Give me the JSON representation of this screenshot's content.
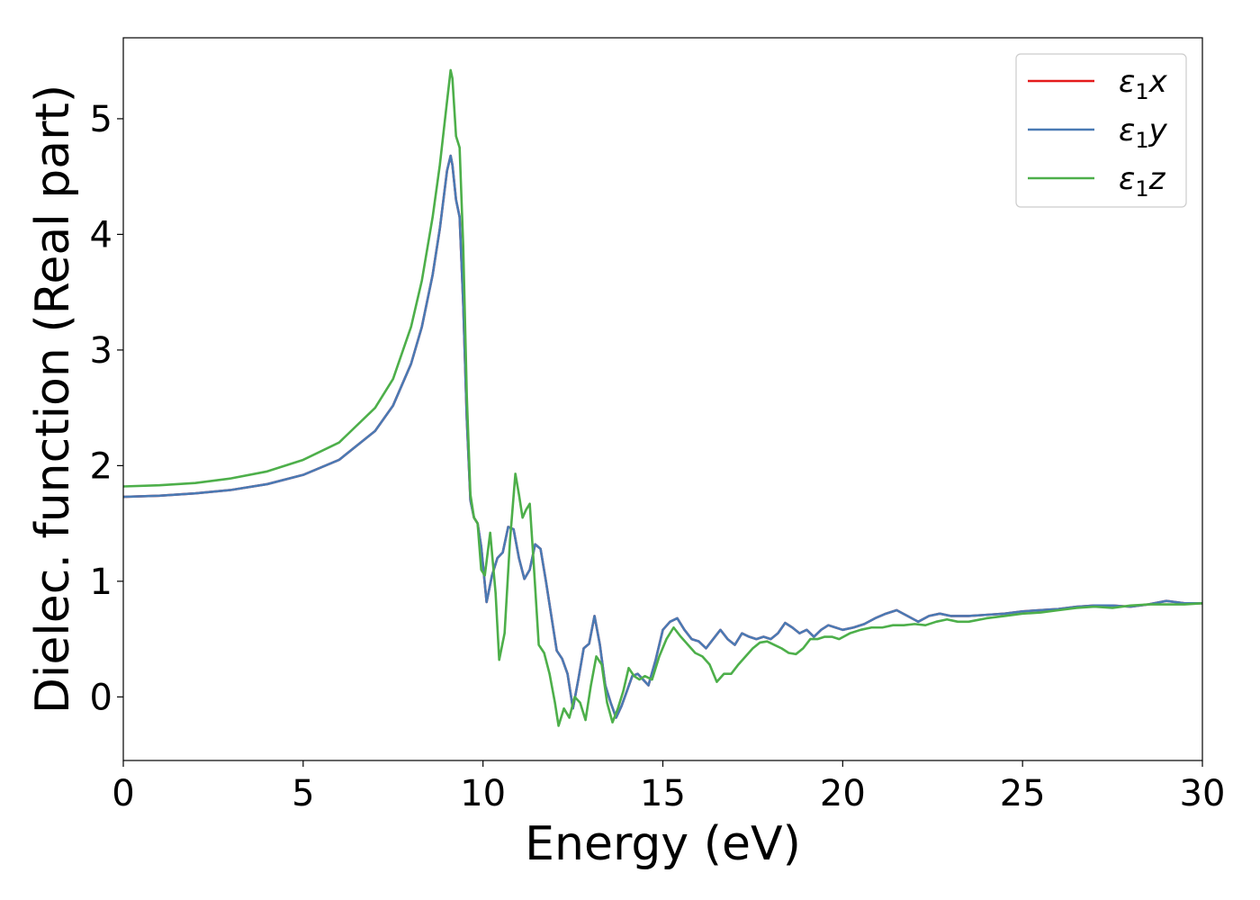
{
  "chart_data": {
    "type": "line",
    "xlabel": "Energy (eV)",
    "ylabel": "Dielec. function (Real part)",
    "xlim": [
      0,
      30
    ],
    "ylim": [
      -0.55,
      5.7
    ],
    "xticks": [
      "0",
      "5",
      "10",
      "15",
      "20",
      "25",
      "30"
    ],
    "yticks": [
      "0",
      "1",
      "2",
      "3",
      "4",
      "5"
    ],
    "grid": false,
    "legend_position": "top-right",
    "series": [
      {
        "name": "ε₁x",
        "legend_base": "ε",
        "legend_sub": "1",
        "legend_var": "x",
        "color": "#e41a1c",
        "x": [
          0,
          1,
          2,
          3,
          4,
          5,
          6,
          7,
          7.5,
          8,
          8.3,
          8.6,
          8.8,
          9.0,
          9.1,
          9.15,
          9.25,
          9.35,
          9.45,
          9.55,
          9.65,
          9.75,
          9.85,
          9.95,
          10.1,
          10.25,
          10.4,
          10.55,
          10.7,
          10.85,
          11.0,
          11.15,
          11.3,
          11.45,
          11.6,
          11.75,
          11.9,
          12.05,
          12.2,
          12.35,
          12.5,
          12.65,
          12.8,
          12.95,
          13.1,
          13.25,
          13.4,
          13.55,
          13.7,
          13.85,
          14.0,
          14.15,
          14.3,
          14.45,
          14.6,
          14.8,
          15.0,
          15.2,
          15.4,
          15.6,
          15.8,
          16.0,
          16.2,
          16.4,
          16.6,
          16.8,
          17.0,
          17.2,
          17.4,
          17.6,
          17.8,
          18.0,
          18.2,
          18.4,
          18.6,
          18.8,
          19.0,
          19.2,
          19.4,
          19.6,
          19.8,
          20.0,
          20.3,
          20.6,
          20.9,
          21.2,
          21.5,
          21.8,
          22.1,
          22.4,
          22.7,
          23.0,
          23.5,
          24.0,
          24.5,
          25.0,
          25.5,
          26.0,
          26.5,
          27.0,
          27.5,
          28.0,
          28.5,
          29.0,
          29.5,
          30.0
        ],
        "y": [
          1.73,
          1.74,
          1.76,
          1.79,
          1.84,
          1.92,
          2.05,
          2.3,
          2.52,
          2.88,
          3.2,
          3.65,
          4.05,
          4.55,
          4.68,
          4.6,
          4.3,
          4.15,
          3.4,
          2.4,
          1.7,
          1.55,
          1.5,
          1.3,
          0.82,
          1.05,
          1.2,
          1.25,
          1.47,
          1.45,
          1.2,
          1.02,
          1.1,
          1.32,
          1.28,
          1.0,
          0.7,
          0.4,
          0.33,
          0.2,
          -0.1,
          0.15,
          0.42,
          0.46,
          0.7,
          0.45,
          0.1,
          -0.05,
          -0.18,
          -0.08,
          0.05,
          0.18,
          0.2,
          0.15,
          0.1,
          0.32,
          0.58,
          0.65,
          0.68,
          0.58,
          0.5,
          0.48,
          0.42,
          0.5,
          0.58,
          0.5,
          0.45,
          0.55,
          0.52,
          0.5,
          0.52,
          0.5,
          0.55,
          0.64,
          0.6,
          0.55,
          0.58,
          0.52,
          0.58,
          0.62,
          0.6,
          0.58,
          0.6,
          0.63,
          0.68,
          0.72,
          0.75,
          0.7,
          0.65,
          0.7,
          0.72,
          0.7,
          0.7,
          0.71,
          0.72,
          0.74,
          0.75,
          0.76,
          0.78,
          0.79,
          0.79,
          0.78,
          0.8,
          0.83,
          0.81,
          0.81
        ]
      },
      {
        "name": "ε₁y",
        "legend_base": "ε",
        "legend_sub": "1",
        "legend_var": "y",
        "color": "#4a7ab4",
        "x": [
          0,
          1,
          2,
          3,
          4,
          5,
          6,
          7,
          7.5,
          8,
          8.3,
          8.6,
          8.8,
          9.0,
          9.1,
          9.15,
          9.25,
          9.35,
          9.45,
          9.55,
          9.65,
          9.75,
          9.85,
          9.95,
          10.1,
          10.25,
          10.4,
          10.55,
          10.7,
          10.85,
          11.0,
          11.15,
          11.3,
          11.45,
          11.6,
          11.75,
          11.9,
          12.05,
          12.2,
          12.35,
          12.5,
          12.65,
          12.8,
          12.95,
          13.1,
          13.25,
          13.4,
          13.55,
          13.7,
          13.85,
          14.0,
          14.15,
          14.3,
          14.45,
          14.6,
          14.8,
          15.0,
          15.2,
          15.4,
          15.6,
          15.8,
          16.0,
          16.2,
          16.4,
          16.6,
          16.8,
          17.0,
          17.2,
          17.4,
          17.6,
          17.8,
          18.0,
          18.2,
          18.4,
          18.6,
          18.8,
          19.0,
          19.2,
          19.4,
          19.6,
          19.8,
          20.0,
          20.3,
          20.6,
          20.9,
          21.2,
          21.5,
          21.8,
          22.1,
          22.4,
          22.7,
          23.0,
          23.5,
          24.0,
          24.5,
          25.0,
          25.5,
          26.0,
          26.5,
          27.0,
          27.5,
          28.0,
          28.5,
          29.0,
          29.5,
          30.0
        ],
        "y": [
          1.73,
          1.74,
          1.76,
          1.79,
          1.84,
          1.92,
          2.05,
          2.3,
          2.52,
          2.88,
          3.2,
          3.65,
          4.05,
          4.55,
          4.68,
          4.6,
          4.3,
          4.15,
          3.4,
          2.4,
          1.7,
          1.55,
          1.5,
          1.3,
          0.82,
          1.05,
          1.2,
          1.25,
          1.47,
          1.45,
          1.2,
          1.02,
          1.1,
          1.32,
          1.28,
          1.0,
          0.7,
          0.4,
          0.33,
          0.2,
          -0.1,
          0.15,
          0.42,
          0.46,
          0.7,
          0.45,
          0.1,
          -0.05,
          -0.18,
          -0.08,
          0.05,
          0.18,
          0.2,
          0.15,
          0.1,
          0.32,
          0.58,
          0.65,
          0.68,
          0.58,
          0.5,
          0.48,
          0.42,
          0.5,
          0.58,
          0.5,
          0.45,
          0.55,
          0.52,
          0.5,
          0.52,
          0.5,
          0.55,
          0.64,
          0.6,
          0.55,
          0.58,
          0.52,
          0.58,
          0.62,
          0.6,
          0.58,
          0.6,
          0.63,
          0.68,
          0.72,
          0.75,
          0.7,
          0.65,
          0.7,
          0.72,
          0.7,
          0.7,
          0.71,
          0.72,
          0.74,
          0.75,
          0.76,
          0.78,
          0.79,
          0.79,
          0.78,
          0.8,
          0.83,
          0.81,
          0.81
        ]
      },
      {
        "name": "ε₁z",
        "legend_base": "ε",
        "legend_sub": "1",
        "legend_var": "z",
        "color": "#4daf4a",
        "x": [
          0,
          1,
          2,
          3,
          4,
          5,
          6,
          7,
          7.5,
          8,
          8.3,
          8.6,
          8.8,
          9.0,
          9.1,
          9.15,
          9.25,
          9.35,
          9.45,
          9.55,
          9.65,
          9.75,
          9.85,
          9.95,
          10.05,
          10.2,
          10.35,
          10.45,
          10.6,
          10.75,
          10.9,
          11.0,
          11.1,
          11.2,
          11.3,
          11.4,
          11.55,
          11.7,
          11.85,
          12.0,
          12.1,
          12.25,
          12.4,
          12.55,
          12.7,
          12.85,
          13.0,
          13.15,
          13.3,
          13.45,
          13.6,
          13.75,
          13.9,
          14.05,
          14.2,
          14.35,
          14.5,
          14.7,
          14.9,
          15.1,
          15.3,
          15.5,
          15.7,
          15.9,
          16.1,
          16.3,
          16.5,
          16.7,
          16.9,
          17.1,
          17.3,
          17.5,
          17.7,
          17.9,
          18.1,
          18.3,
          18.5,
          18.7,
          18.9,
          19.1,
          19.3,
          19.5,
          19.7,
          19.9,
          20.2,
          20.5,
          20.8,
          21.1,
          21.4,
          21.7,
          22.0,
          22.3,
          22.6,
          22.9,
          23.2,
          23.5,
          24.0,
          24.5,
          25.0,
          25.5,
          26.0,
          26.5,
          27.0,
          27.5,
          28.0,
          28.5,
          29.0,
          29.5,
          30.0
        ],
        "y": [
          1.82,
          1.83,
          1.85,
          1.89,
          1.95,
          2.05,
          2.2,
          2.5,
          2.75,
          3.2,
          3.6,
          4.15,
          4.6,
          5.15,
          5.42,
          5.35,
          4.85,
          4.75,
          3.9,
          2.6,
          1.75,
          1.55,
          1.5,
          1.1,
          1.05,
          1.42,
          0.9,
          0.32,
          0.55,
          1.35,
          1.93,
          1.75,
          1.55,
          1.62,
          1.67,
          1.2,
          0.45,
          0.38,
          0.2,
          -0.05,
          -0.25,
          -0.1,
          -0.18,
          0.0,
          -0.05,
          -0.2,
          0.1,
          0.35,
          0.28,
          -0.05,
          -0.22,
          -0.1,
          0.05,
          0.25,
          0.18,
          0.15,
          0.18,
          0.15,
          0.35,
          0.5,
          0.6,
          0.52,
          0.45,
          0.38,
          0.35,
          0.28,
          0.13,
          0.2,
          0.2,
          0.28,
          0.35,
          0.42,
          0.47,
          0.48,
          0.45,
          0.42,
          0.38,
          0.37,
          0.42,
          0.5,
          0.5,
          0.52,
          0.52,
          0.5,
          0.55,
          0.58,
          0.6,
          0.6,
          0.62,
          0.62,
          0.63,
          0.62,
          0.65,
          0.67,
          0.65,
          0.65,
          0.68,
          0.7,
          0.72,
          0.73,
          0.75,
          0.77,
          0.78,
          0.77,
          0.79,
          0.8,
          0.8,
          0.8,
          0.81
        ]
      }
    ]
  }
}
